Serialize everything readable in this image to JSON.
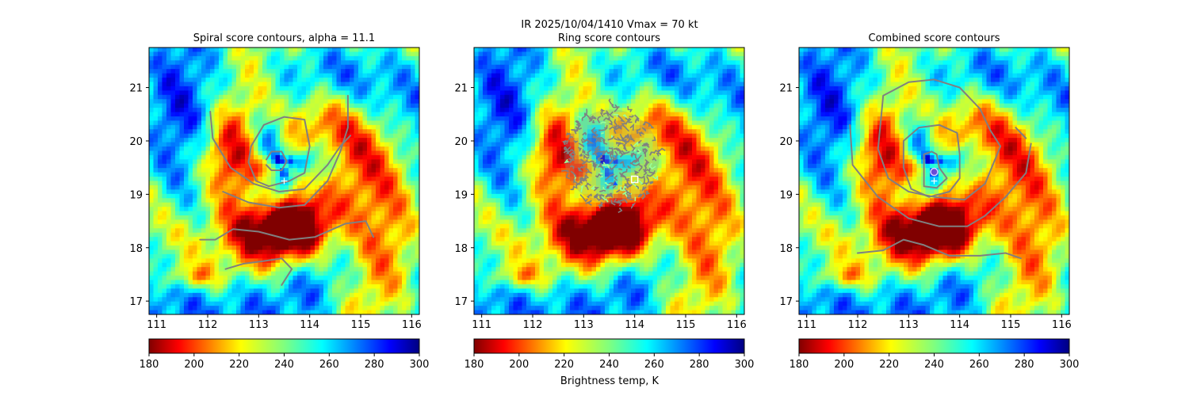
{
  "figure": {
    "suptitle_line1": "IR  2025/10/04/1410    Vmax = 70 kt",
    "colorbar_label": "Brightness temp, K"
  },
  "chart_data": [
    {
      "type": "heatmap",
      "title": "Spiral score contours, alpha = 11.1",
      "xlim": [
        110.85,
        116.15
      ],
      "ylim": [
        16.75,
        21.75
      ],
      "xticks": [
        111,
        112,
        113,
        114,
        115,
        116
      ],
      "yticks": [
        17,
        18,
        19,
        20,
        21
      ],
      "colorbar": {
        "cmap": "jet_r",
        "range": [
          180,
          300
        ],
        "ticks": [
          180,
          200,
          220,
          240,
          260,
          280,
          300
        ]
      },
      "center_marker": {
        "lon": 113.5,
        "lat": 19.25,
        "symbol": "+"
      },
      "contours": [
        [
          [
            113.15,
            19.65
          ],
          [
            113.25,
            19.8
          ],
          [
            113.45,
            19.8
          ],
          [
            113.55,
            19.62
          ],
          [
            113.45,
            19.45
          ],
          [
            113.25,
            19.45
          ],
          [
            113.15,
            19.55
          ]
        ],
        [
          [
            112.8,
            19.6
          ],
          [
            112.85,
            19.9
          ],
          [
            113.1,
            20.3
          ],
          [
            113.5,
            20.45
          ],
          [
            113.9,
            20.4
          ],
          [
            114.0,
            19.9
          ],
          [
            113.9,
            19.4
          ],
          [
            113.6,
            19.25
          ],
          [
            113.2,
            19.15
          ],
          [
            112.95,
            19.25
          ],
          [
            112.8,
            19.6
          ]
        ],
        [
          [
            112.05,
            20.55
          ],
          [
            112.1,
            20.05
          ],
          [
            112.45,
            19.5
          ],
          [
            112.9,
            19.2
          ],
          [
            113.4,
            19.05
          ],
          [
            113.9,
            19.1
          ],
          [
            114.35,
            19.55
          ],
          [
            114.6,
            19.9
          ],
          [
            114.8,
            20.1
          ]
        ],
        [
          [
            112.3,
            19.05
          ],
          [
            112.8,
            18.85
          ],
          [
            113.4,
            18.75
          ],
          [
            113.9,
            18.8
          ],
          [
            114.35,
            19.25
          ],
          [
            114.6,
            19.8
          ],
          [
            114.75,
            20.25
          ],
          [
            114.75,
            20.85
          ]
        ],
        [
          [
            111.85,
            18.15
          ],
          [
            112.15,
            18.15
          ],
          [
            112.5,
            18.35
          ],
          [
            113.0,
            18.3
          ],
          [
            113.6,
            18.15
          ],
          [
            114.1,
            18.2
          ],
          [
            114.7,
            18.45
          ],
          [
            115.1,
            18.5
          ],
          [
            115.25,
            18.2
          ]
        ],
        [
          [
            112.35,
            17.6
          ],
          [
            112.7,
            17.7
          ],
          [
            113.1,
            17.75
          ],
          [
            113.45,
            17.8
          ],
          [
            113.65,
            17.6
          ],
          [
            113.45,
            17.3
          ]
        ]
      ],
      "contour_color": "#808080"
    },
    {
      "type": "heatmap",
      "title": "Ring score contours",
      "xlim": [
        110.85,
        116.15
      ],
      "ylim": [
        16.75,
        21.75
      ],
      "xticks": [
        111,
        112,
        113,
        114,
        115,
        116
      ],
      "yticks": [
        17,
        18,
        19,
        20,
        21
      ],
      "colorbar": {
        "cmap": "jet_r",
        "range": [
          180,
          300
        ],
        "ticks": [
          180,
          200,
          220,
          240,
          260,
          280,
          300
        ]
      },
      "ring_region": {
        "lon": 113.55,
        "lat": 19.7,
        "radius_deg": 0.95
      },
      "center_marker": {
        "lon": 114.0,
        "lat": 19.28,
        "symbol": "square"
      },
      "secondary_marker": {
        "lon": 113.62,
        "lat": 19.2,
        "symbol": "triangle"
      },
      "contour_color": "#808080"
    },
    {
      "type": "heatmap",
      "title": "Combined score contours",
      "xlim": [
        110.85,
        116.15
      ],
      "ylim": [
        16.75,
        21.75
      ],
      "xticks": [
        111,
        112,
        113,
        114,
        115,
        116
      ],
      "yticks": [
        17,
        18,
        19,
        20,
        21
      ],
      "colorbar": {
        "cmap": "jet_r",
        "range": [
          180,
          300
        ],
        "ticks": [
          180,
          200,
          220,
          240,
          260,
          280,
          300
        ]
      },
      "center_marker": {
        "lon": 113.5,
        "lat": 19.42,
        "symbol": "circle"
      },
      "secondary_marker": {
        "lon": 113.5,
        "lat": 19.25,
        "symbol": "+"
      },
      "contours": [
        [
          [
            113.3,
            19.55
          ],
          [
            113.3,
            19.75
          ],
          [
            113.45,
            19.8
          ],
          [
            113.55,
            19.75
          ],
          [
            113.6,
            19.5
          ],
          [
            113.75,
            19.3
          ],
          [
            113.55,
            19.12
          ],
          [
            113.3,
            19.15
          ],
          [
            113.3,
            19.55
          ]
        ],
        [
          [
            112.9,
            20.0
          ],
          [
            113.2,
            20.25
          ],
          [
            113.6,
            20.3
          ],
          [
            113.95,
            20.15
          ],
          [
            114.0,
            19.75
          ],
          [
            114.0,
            19.3
          ],
          [
            113.8,
            19.05
          ],
          [
            113.4,
            18.95
          ],
          [
            113.05,
            19.1
          ],
          [
            112.9,
            19.5
          ],
          [
            112.9,
            20.0
          ]
        ],
        [
          [
            112.4,
            19.85
          ],
          [
            112.5,
            20.85
          ],
          [
            113.0,
            21.1
          ],
          [
            113.5,
            21.15
          ],
          [
            114.0,
            21.0
          ],
          [
            114.4,
            20.6
          ],
          [
            114.6,
            20.2
          ],
          [
            114.8,
            19.9
          ],
          [
            114.5,
            19.2
          ],
          [
            114.1,
            18.9
          ],
          [
            113.5,
            18.95
          ],
          [
            113.0,
            19.05
          ],
          [
            112.6,
            19.3
          ],
          [
            112.4,
            19.85
          ]
        ],
        [
          [
            111.85,
            20.3
          ],
          [
            111.9,
            19.55
          ],
          [
            112.4,
            18.95
          ],
          [
            113.0,
            18.55
          ],
          [
            113.6,
            18.4
          ],
          [
            114.15,
            18.4
          ],
          [
            114.5,
            18.6
          ],
          [
            114.9,
            18.95
          ],
          [
            115.3,
            19.4
          ],
          [
            115.4,
            19.95
          ]
        ],
        [
          [
            115.3,
            20.05
          ],
          [
            115.1,
            20.25
          ]
        ],
        [
          [
            112.0,
            17.9
          ],
          [
            112.5,
            17.95
          ],
          [
            112.9,
            18.15
          ],
          [
            113.3,
            18.05
          ],
          [
            113.8,
            17.85
          ],
          [
            114.4,
            17.85
          ],
          [
            114.9,
            17.9
          ],
          [
            115.2,
            17.8
          ]
        ]
      ],
      "contour_color": "#808080"
    }
  ]
}
